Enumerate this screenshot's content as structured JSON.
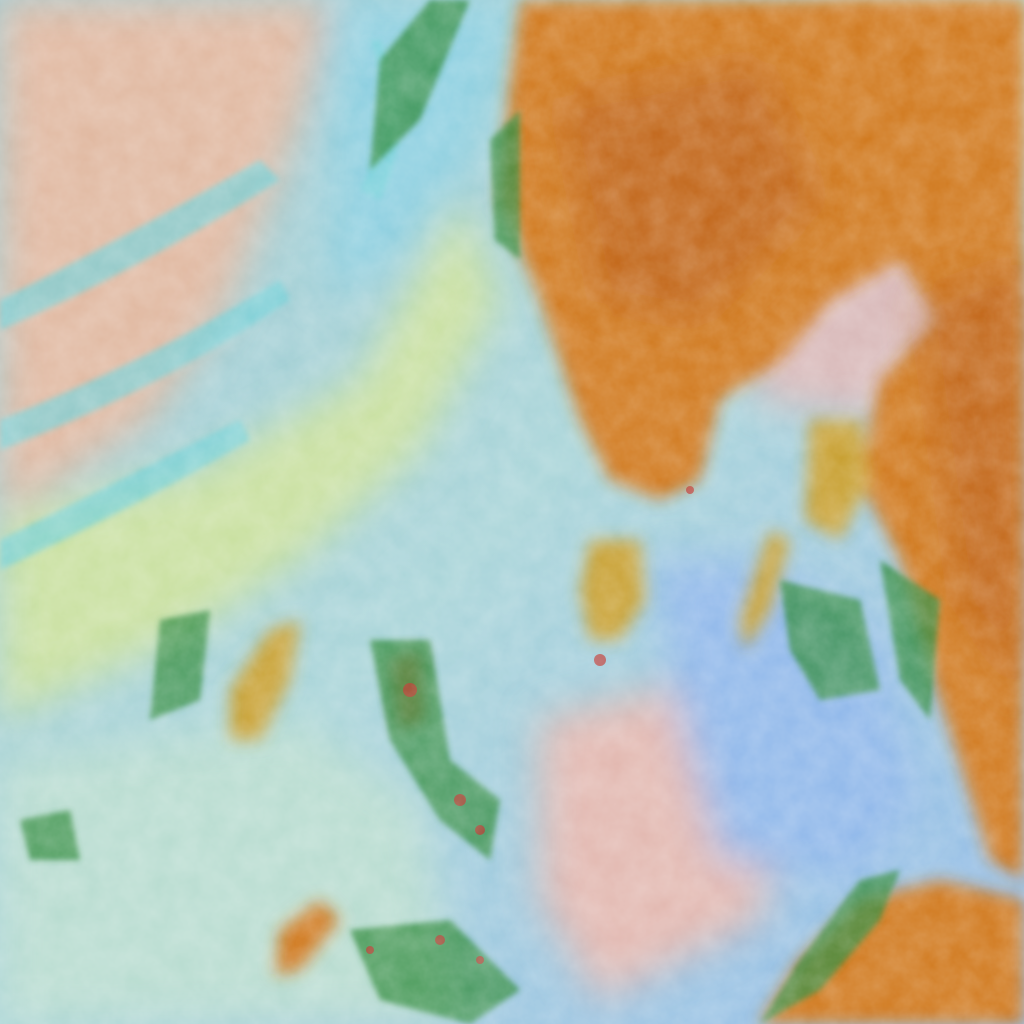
{
  "image": {
    "kind": "false-color satellite imagery",
    "colors": {
      "ocean_clear": "#8fc6e6",
      "cloud_pale": "#c8dcc0",
      "cloud_yellow_green": "#c9e0a0",
      "cloud_pink": "#e2b8a8",
      "cloud_cyan": "#6fd0d8",
      "land_orange": "#d0781a",
      "land_dark": "#b85a12",
      "land_yellow": "#c8a030",
      "edge_green": "#2f8a3a"
    }
  }
}
